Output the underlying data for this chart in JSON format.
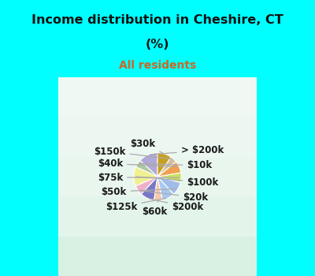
{
  "title_line1": "Income distribution in Cheshire, CT",
  "title_line2": "(%)",
  "subtitle": "All residents",
  "title_color": "#111111",
  "subtitle_color": "#cc6622",
  "bg_cyan": "#00ffff",
  "labels": [
    "> $200k",
    "$10k",
    "$100k",
    "$20k",
    "$200k",
    "$60k",
    "$125k",
    "$50k",
    "$75k",
    "$40k",
    "$150k",
    "$30k"
  ],
  "values": [
    13.0,
    5.0,
    13.0,
    6.5,
    9.5,
    5.5,
    8.5,
    9.0,
    6.5,
    8.0,
    4.5,
    9.5
  ],
  "colors": [
    "#b0a8d8",
    "#adc8a0",
    "#f0f090",
    "#f0b0c8",
    "#7878c8",
    "#f8c8a8",
    "#a8c8f0",
    "#a0bce8",
    "#c8e060",
    "#f0a050",
    "#d0c0a0",
    "#c8a020"
  ],
  "startangle": 90,
  "label_fs": 8.5,
  "title_fs": 11.5,
  "subtitle_fs": 10
}
